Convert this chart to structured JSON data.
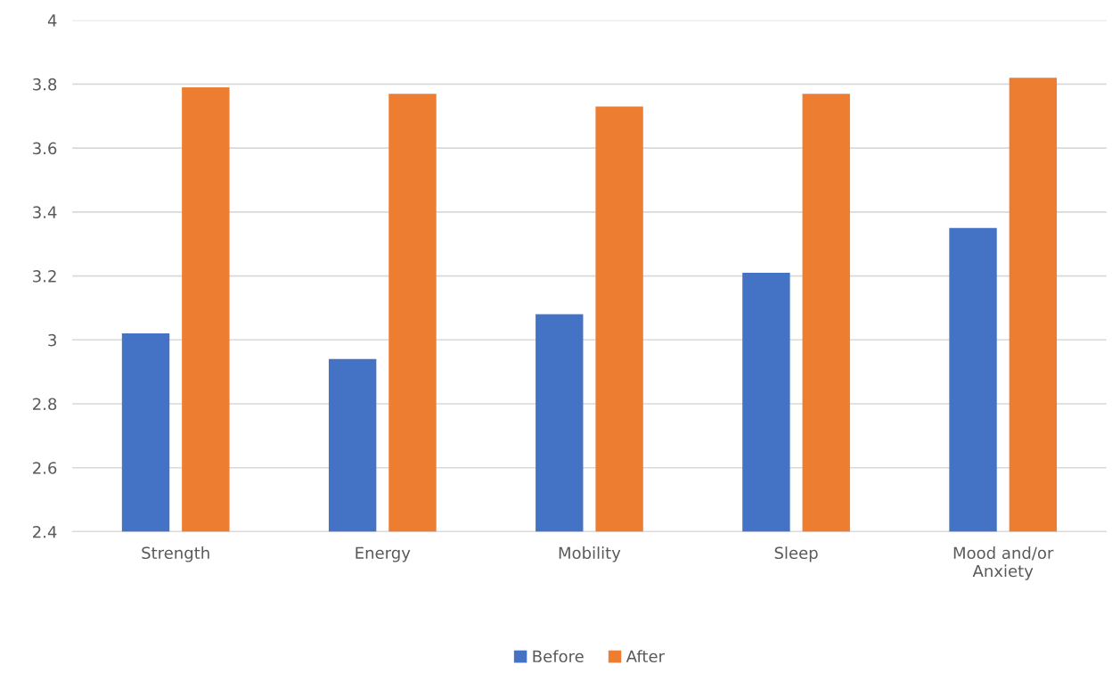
{
  "chart_data": {
    "type": "bar",
    "categories": [
      "Strength",
      "Energy",
      "Mobility",
      "Sleep",
      "Mood and/or\nAnxiety"
    ],
    "series": [
      {
        "name": "Before",
        "color": "#4472c4",
        "values": [
          3.02,
          2.94,
          3.08,
          3.21,
          3.35
        ]
      },
      {
        "name": "After",
        "color": "#ed7d31",
        "values": [
          3.79,
          3.77,
          3.73,
          3.77,
          3.82
        ]
      }
    ],
    "ylim": [
      2.4,
      4
    ],
    "yticks": [
      2.4,
      2.6,
      2.8,
      3,
      3.2,
      3.4,
      3.6,
      3.8,
      4
    ],
    "grid": "y",
    "legend": "bottom"
  }
}
